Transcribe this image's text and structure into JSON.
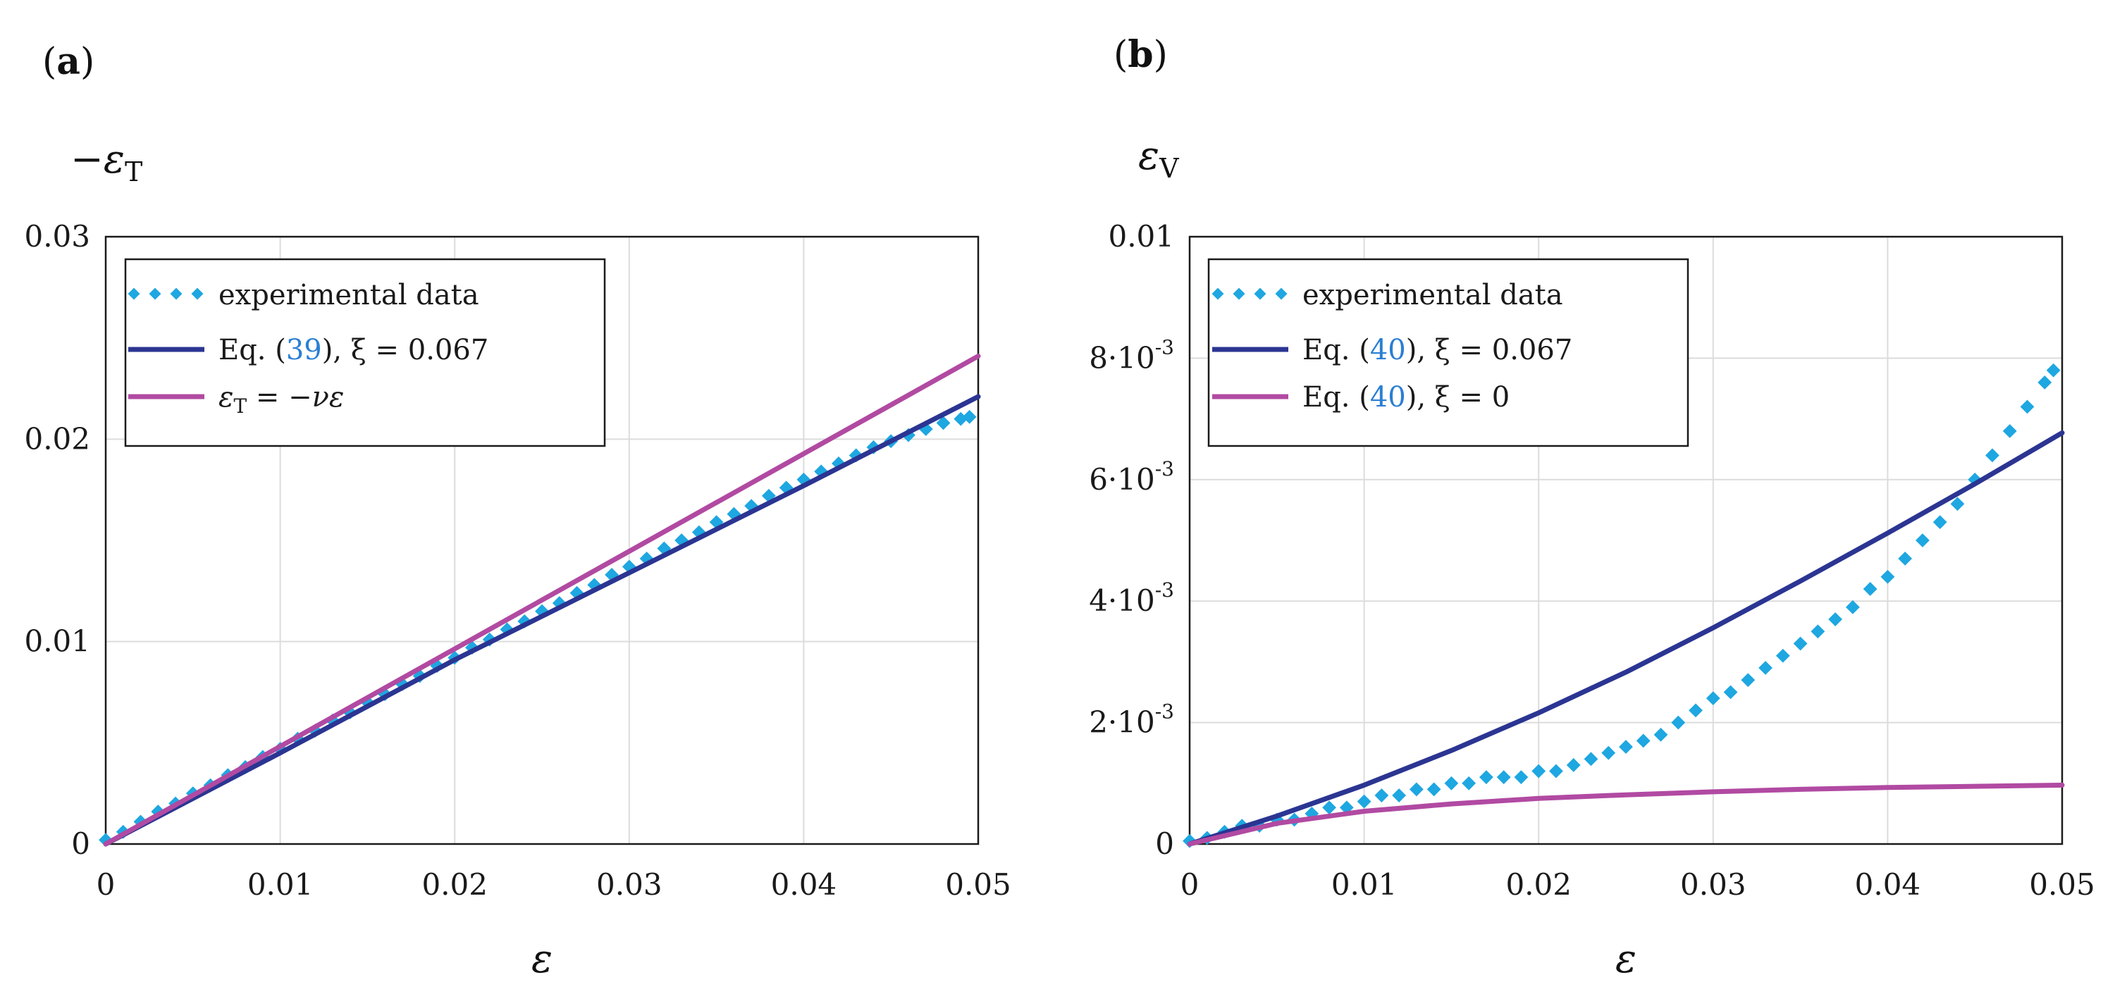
{
  "colors": {
    "data": "#1ea7e1",
    "model": "#2b3592",
    "reference": "#b14aa2",
    "link": "#2a7fd4"
  },
  "chart_data": [
    {
      "panel": "a",
      "panel_label_open": "(",
      "panel_label_letter": "a",
      "panel_label_close": ")",
      "type": "scatter",
      "title": "",
      "ylabel_prefix": "−ε",
      "ylabel_sub": "T",
      "xlabel": "ε",
      "xlim": [
        0,
        0.05
      ],
      "ylim": [
        0,
        0.03
      ],
      "xticks": [
        0,
        0.01,
        0.02,
        0.03,
        0.04,
        0.05
      ],
      "xtick_labels": [
        "0",
        "0.01",
        "0.02",
        "0.03",
        "0.04",
        "0.05"
      ],
      "yticks": [
        0,
        0.01,
        0.02,
        0.03
      ],
      "ytick_labels": [
        "0",
        "0.01",
        "0.02",
        "0.03"
      ],
      "legend": {
        "position": "top-left",
        "experimental": "experimental data",
        "eq_prefix": "Eq. (",
        "eq_ref": "39",
        "eq_suffix": "), ξ = 0.067",
        "ref_prefix": "ε",
        "ref_sub": "T",
        "ref_suffix": " = −νε"
      },
      "series": [
        {
          "name": "experimental data",
          "kind": "scatter",
          "x": [
            0.0,
            0.001,
            0.002,
            0.003,
            0.004,
            0.005,
            0.006,
            0.007,
            0.008,
            0.009,
            0.01,
            0.011,
            0.012,
            0.013,
            0.014,
            0.015,
            0.016,
            0.017,
            0.018,
            0.019,
            0.02,
            0.021,
            0.022,
            0.023,
            0.024,
            0.025,
            0.026,
            0.027,
            0.028,
            0.029,
            0.03,
            0.031,
            0.032,
            0.033,
            0.034,
            0.035,
            0.036,
            0.037,
            0.038,
            0.039,
            0.04,
            0.041,
            0.042,
            0.043,
            0.044,
            0.045,
            0.046,
            0.047,
            0.048,
            0.049,
            0.0495
          ],
          "y": [
            0.0002,
            0.0006,
            0.0011,
            0.0016,
            0.002,
            0.0025,
            0.0029,
            0.0034,
            0.0038,
            0.0043,
            0.0047,
            0.0052,
            0.0056,
            0.0061,
            0.0065,
            0.007,
            0.0074,
            0.0079,
            0.0083,
            0.0088,
            0.0092,
            0.0097,
            0.0101,
            0.0106,
            0.011,
            0.0115,
            0.0119,
            0.0124,
            0.0128,
            0.0133,
            0.0137,
            0.0141,
            0.0146,
            0.015,
            0.0154,
            0.0159,
            0.0163,
            0.0167,
            0.0172,
            0.0176,
            0.018,
            0.0184,
            0.0188,
            0.0192,
            0.0196,
            0.0199,
            0.0202,
            0.0205,
            0.0208,
            0.021,
            0.0211
          ]
        },
        {
          "name": "Eq. (39), ξ = 0.067",
          "kind": "line",
          "x": [
            0,
            0.01,
            0.02,
            0.03,
            0.04,
            0.05
          ],
          "y": [
            0,
            0.0045,
            0.0091,
            0.0134,
            0.0177,
            0.0221
          ]
        },
        {
          "name": "εT = −νε",
          "kind": "line",
          "x": [
            0,
            0.05
          ],
          "y": [
            0,
            0.0241
          ]
        }
      ]
    },
    {
      "panel": "b",
      "panel_label_open": "(",
      "panel_label_letter": "b",
      "panel_label_close": ")",
      "type": "scatter",
      "title": "",
      "ylabel_prefix": "ε",
      "ylabel_sub": "V",
      "xlabel": "ε",
      "xlim": [
        0,
        0.05
      ],
      "ylim": [
        0,
        0.01
      ],
      "xticks": [
        0,
        0.01,
        0.02,
        0.03,
        0.04,
        0.05
      ],
      "xtick_labels": [
        "0",
        "0.01",
        "0.02",
        "0.03",
        "0.04",
        "0.05"
      ],
      "yticks": [
        0,
        0.002,
        0.004,
        0.006,
        0.008,
        0.01
      ],
      "ytick_labels": [
        "0",
        "2·10",
        "4·10",
        "6·10",
        "8·10",
        "0.01"
      ],
      "ytick_exponent": "-3",
      "legend": {
        "position": "top-left",
        "experimental": "experimental data",
        "eq1_prefix": "Eq. (",
        "eq1_ref": "40",
        "eq1_suffix": "), ξ = 0.067",
        "eq2_prefix": "Eq. (",
        "eq2_ref": "40",
        "eq2_suffix": "), ξ = 0"
      },
      "series": [
        {
          "name": "experimental data",
          "kind": "scatter",
          "x": [
            0.0,
            0.001,
            0.002,
            0.003,
            0.004,
            0.005,
            0.006,
            0.007,
            0.008,
            0.009,
            0.01,
            0.011,
            0.012,
            0.013,
            0.014,
            0.015,
            0.016,
            0.017,
            0.018,
            0.019,
            0.02,
            0.021,
            0.022,
            0.023,
            0.024,
            0.025,
            0.026,
            0.027,
            0.028,
            0.029,
            0.03,
            0.031,
            0.032,
            0.033,
            0.034,
            0.035,
            0.036,
            0.037,
            0.038,
            0.039,
            0.04,
            0.041,
            0.042,
            0.043,
            0.044,
            0.045,
            0.046,
            0.047,
            0.048,
            0.049,
            0.0495
          ],
          "y": [
            5e-05,
            0.0001,
            0.0002,
            0.0003,
            0.0003,
            0.0004,
            0.0004,
            0.0005,
            0.0006,
            0.0006,
            0.0007,
            0.0008,
            0.0008,
            0.0009,
            0.0009,
            0.001,
            0.001,
            0.0011,
            0.0011,
            0.0011,
            0.0012,
            0.0012,
            0.0013,
            0.0014,
            0.0015,
            0.0016,
            0.0017,
            0.0018,
            0.002,
            0.0022,
            0.0024,
            0.0025,
            0.0027,
            0.0029,
            0.0031,
            0.0033,
            0.0035,
            0.0037,
            0.0039,
            0.0042,
            0.0044,
            0.0047,
            0.005,
            0.0053,
            0.0056,
            0.006,
            0.0064,
            0.0068,
            0.0072,
            0.0076,
            0.0078
          ]
        },
        {
          "name": "Eq. (40), ξ = 0.067",
          "kind": "line",
          "x": [
            0,
            0.005,
            0.01,
            0.015,
            0.02,
            0.025,
            0.03,
            0.035,
            0.04,
            0.045,
            0.05
          ],
          "y": [
            0,
            0.00046,
            0.00097,
            0.00154,
            0.00216,
            0.00283,
            0.00356,
            0.00433,
            0.00512,
            0.00593,
            0.00677
          ]
        },
        {
          "name": "Eq. (40), ξ = 0",
          "kind": "line",
          "x": [
            0,
            0.005,
            0.01,
            0.015,
            0.02,
            0.025,
            0.03,
            0.035,
            0.04,
            0.045,
            0.05
          ],
          "y": [
            0,
            0.00034,
            0.00054,
            0.00066,
            0.00075,
            0.00081,
            0.00086,
            0.0009,
            0.00093,
            0.00095,
            0.00097
          ]
        }
      ]
    }
  ]
}
